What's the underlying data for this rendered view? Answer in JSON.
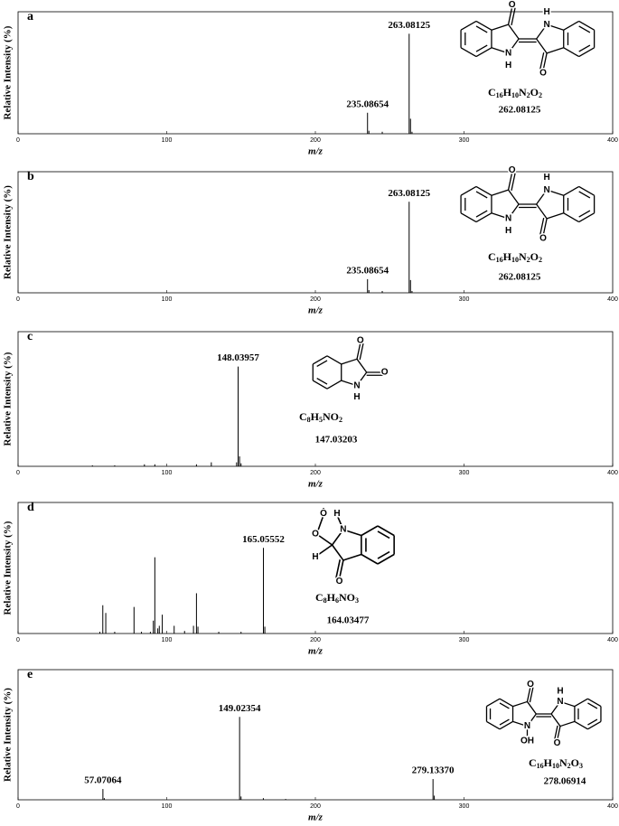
{
  "chart_data": [
    {
      "type": "bar",
      "panel": "a",
      "ylabel": "Relative Intensity (%)",
      "xlabel": "m/z",
      "x": [
        235.08654,
        236,
        245,
        263.08125,
        264,
        265
      ],
      "values": [
        21,
        3,
        2,
        100,
        15,
        2
      ],
      "x_labels": [
        "235.08654",
        null,
        null,
        "263.08125",
        null,
        null
      ],
      "xlim": [
        0,
        400
      ],
      "xticks": [
        0,
        100,
        200,
        300,
        400
      ],
      "ylim": [
        0,
        122
      ],
      "color": "#000000",
      "formula": "C16H10N2O2",
      "mass": "262.08125",
      "structure_labels": [
        "O",
        "N",
        "H",
        "N",
        "H",
        "O"
      ]
    },
    {
      "type": "bar",
      "panel": "b",
      "ylabel": "Relative Intensity (%)",
      "xlabel": "m/z",
      "x": [
        235.08654,
        236,
        245,
        263.08125,
        264,
        265
      ],
      "values": [
        15,
        3,
        2,
        100,
        14,
        2
      ],
      "x_labels": [
        "235.08654",
        null,
        null,
        "263.08125",
        null,
        null
      ],
      "xlim": [
        0,
        400
      ],
      "xticks": [
        0,
        100,
        200,
        300,
        400
      ],
      "ylim": [
        0,
        133
      ],
      "color": "#000000",
      "formula": "C16H10N2O2",
      "mass": "262.08125",
      "structure_labels": [
        "O",
        "N",
        "H",
        "N",
        "H",
        "O"
      ]
    },
    {
      "type": "bar",
      "panel": "c",
      "ylabel": "Relative Intensity (%)",
      "xlabel": "m/z",
      "x": [
        50,
        65,
        85,
        92,
        120,
        130,
        147,
        148.03957,
        149,
        150
      ],
      "values": [
        1,
        1,
        2,
        2,
        2,
        4,
        4,
        100,
        10,
        3
      ],
      "x_labels": [
        null,
        null,
        null,
        null,
        null,
        null,
        null,
        "148.03957",
        null,
        null
      ],
      "xlim": [
        0,
        400
      ],
      "xticks": [
        0,
        100,
        200,
        300,
        400
      ],
      "ylim": [
        0,
        135
      ],
      "color": "#000000",
      "formula": "C8H5NO2",
      "mass": "147.03203",
      "structure_labels": [
        "O",
        "O",
        "N",
        "H"
      ]
    },
    {
      "type": "bar",
      "panel": "d",
      "ylabel": "Relative Intensity (%)",
      "xlabel": "m/z",
      "x": [
        55,
        57,
        59,
        65,
        78,
        83,
        89,
        91,
        92,
        94,
        95,
        97,
        105,
        112,
        118,
        120,
        121,
        135,
        150,
        165.05552,
        166
      ],
      "values": [
        2,
        33,
        24,
        2,
        31,
        2,
        2,
        15,
        89,
        6,
        9,
        22,
        9,
        3,
        9,
        47,
        8,
        2,
        2,
        100,
        8
      ],
      "x_labels": [
        null,
        null,
        null,
        null,
        null,
        null,
        null,
        null,
        null,
        null,
        null,
        null,
        null,
        null,
        null,
        null,
        null,
        null,
        null,
        "165.05552",
        null
      ],
      "xlim": [
        0,
        400
      ],
      "xticks": [
        0,
        100,
        200,
        300,
        400
      ],
      "ylim": [
        0,
        153
      ],
      "color": "#000000",
      "formula": "C8H6NO3",
      "mass": "164.03477",
      "structure_labels": [
        "Ȯ",
        "O",
        "H",
        "N",
        "H",
        "O"
      ]
    },
    {
      "type": "bar",
      "panel": "e",
      "ylabel": "Relative Intensity (%)",
      "xlabel": "m/z",
      "x": [
        57.07064,
        58,
        149.02354,
        150,
        165,
        180,
        279.1337,
        280
      ],
      "values": [
        13,
        2,
        100,
        4,
        2,
        1,
        25,
        5
      ],
      "x_labels": [
        "57.07064",
        null,
        "149.02354",
        null,
        null,
        null,
        "279.13370",
        null
      ],
      "xlim": [
        0,
        400
      ],
      "xticks": [
        0,
        100,
        200,
        300,
        400
      ],
      "ylim": [
        0,
        157
      ],
      "color": "#000000",
      "formula": "C16H10N2O3",
      "mass": "278.06914",
      "structure_labels": [
        "O",
        "N",
        "OH",
        "N",
        "H",
        "O"
      ]
    }
  ]
}
